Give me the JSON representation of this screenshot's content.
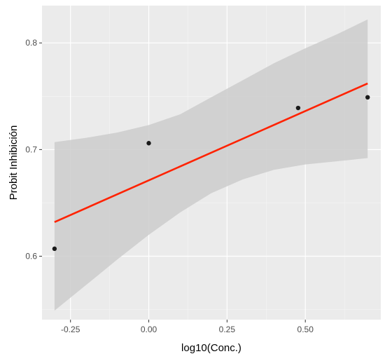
{
  "chart_data": {
    "type": "scatter",
    "xlabel": "log10(Conc.)",
    "ylabel": "Probit Inhibición",
    "xlim": [
      -0.341,
      0.741
    ],
    "ylim": [
      0.5405,
      0.835
    ],
    "x_ticks": [
      -0.25,
      0.0,
      0.25,
      0.5
    ],
    "x_tick_labels": [
      "-0.25",
      "0.00",
      "0.25",
      "0.50"
    ],
    "y_ticks": [
      0.6,
      0.7,
      0.8
    ],
    "y_tick_labels": [
      "0.6",
      "0.7",
      "0.8"
    ],
    "grid": true,
    "points": {
      "x": [
        -0.301,
        0.0,
        0.477,
        0.699
      ],
      "y": [
        0.607,
        0.706,
        0.739,
        0.749
      ]
    },
    "fit_line": {
      "x": [
        -0.301,
        0.699
      ],
      "y": [
        0.632,
        0.762
      ]
    },
    "confidence_band": {
      "x": [
        -0.301,
        -0.2,
        -0.1,
        0.0,
        0.1,
        0.199,
        0.3,
        0.4,
        0.5,
        0.6,
        0.699
      ],
      "lower": [
        0.549,
        0.573,
        0.597,
        0.62,
        0.641,
        0.659,
        0.672,
        0.681,
        0.686,
        0.689,
        0.692
      ],
      "upper": [
        0.707,
        0.711,
        0.716,
        0.723,
        0.733,
        0.749,
        0.765,
        0.781,
        0.795,
        0.808,
        0.822
      ]
    },
    "colors": {
      "panel": "#ebebeb",
      "grid_major": "#ffffff",
      "grid_minor": "#f5f5f5",
      "band": "#cccccc",
      "line": "#ff2200",
      "point": "#1a1a1a"
    }
  }
}
